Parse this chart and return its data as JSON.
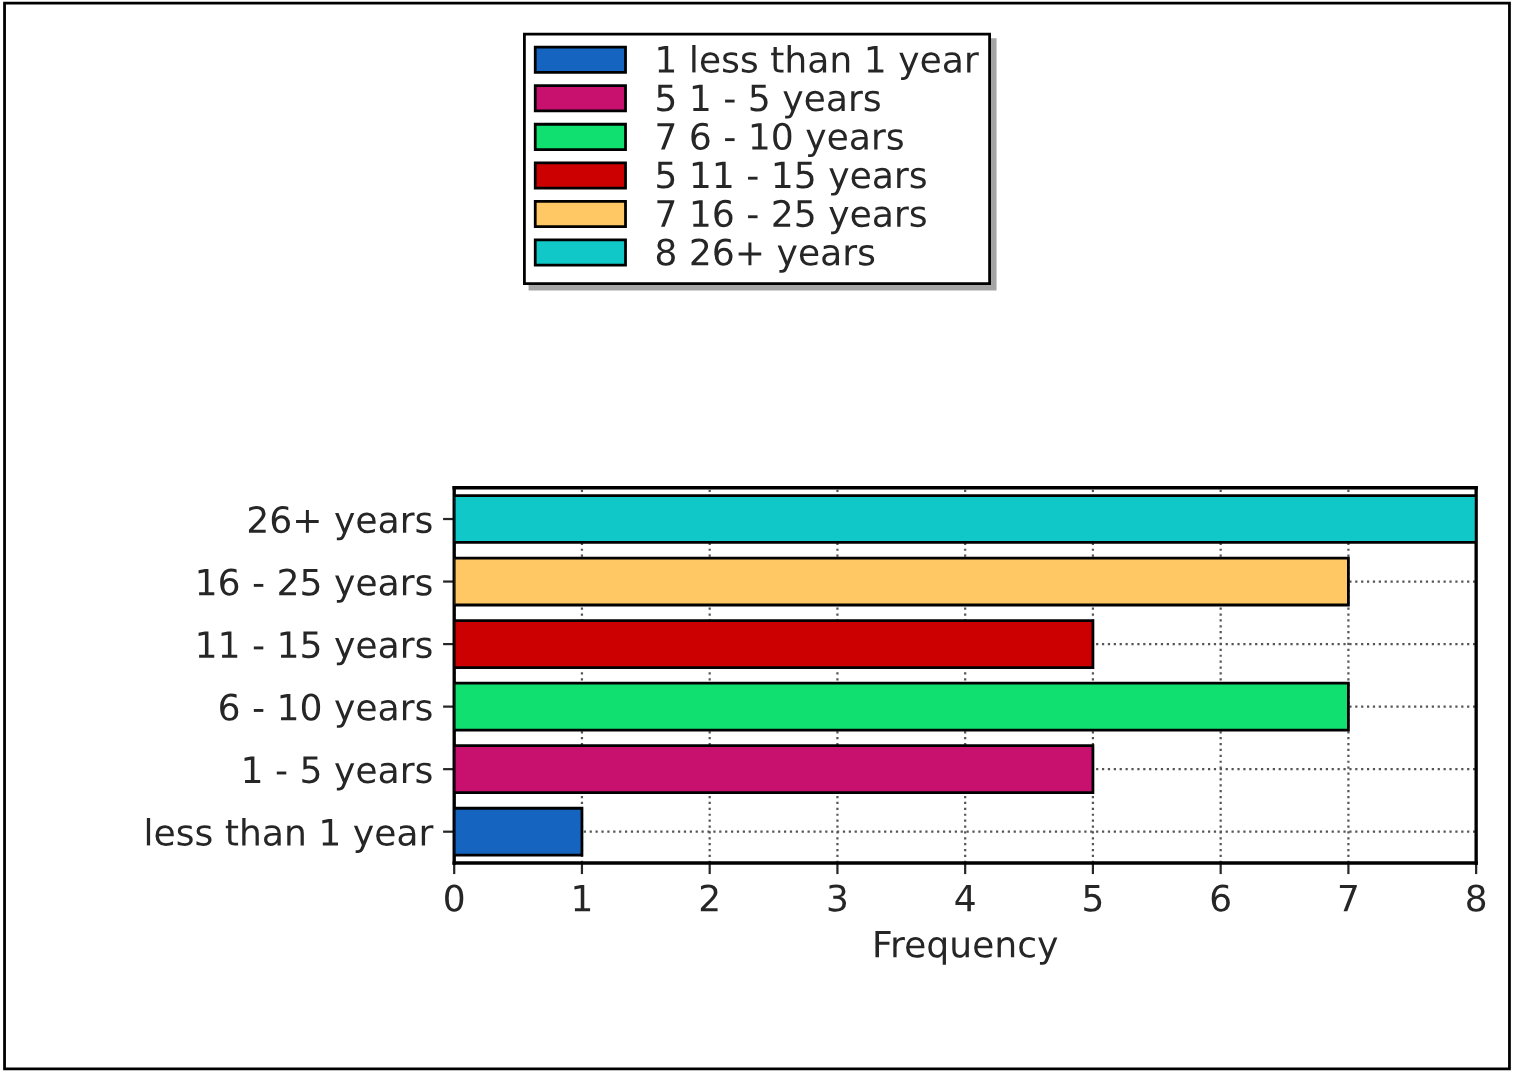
{
  "chart_data": {
    "type": "bar",
    "orientation": "horizontal",
    "xlabel": "Frequency",
    "categories": [
      "26+ years",
      "16 - 25 years",
      "11 - 15 years",
      "6 - 10 years",
      "1 - 5 years",
      "less than 1 year"
    ],
    "series": [
      {
        "name": "1 less than 1 year",
        "color": "#1565c0",
        "values": [
          null,
          null,
          null,
          null,
          null,
          1
        ]
      },
      {
        "name": "5 1 - 5 years",
        "color": "#c8106e",
        "values": [
          null,
          null,
          null,
          null,
          5,
          null
        ]
      },
      {
        "name": "7 6 - 10 years",
        "color": "#10e070",
        "values": [
          null,
          null,
          null,
          7,
          null,
          null
        ]
      },
      {
        "name": "5 11 - 15 years",
        "color": "#cc0000",
        "values": [
          null,
          null,
          5,
          null,
          null,
          null
        ]
      },
      {
        "name": "7 16 - 25 years",
        "color": "#ffc864",
        "values": [
          null,
          7,
          null,
          null,
          null,
          null
        ]
      },
      {
        "name": "8 26+ years",
        "color": "#10c8c8",
        "values": [
          8,
          null,
          null,
          null,
          null,
          null
        ]
      }
    ],
    "xlim": [
      0,
      8
    ],
    "xticks": [
      0,
      1,
      2,
      3,
      4,
      5,
      6,
      7,
      8
    ],
    "grid": true,
    "legend": "top"
  }
}
